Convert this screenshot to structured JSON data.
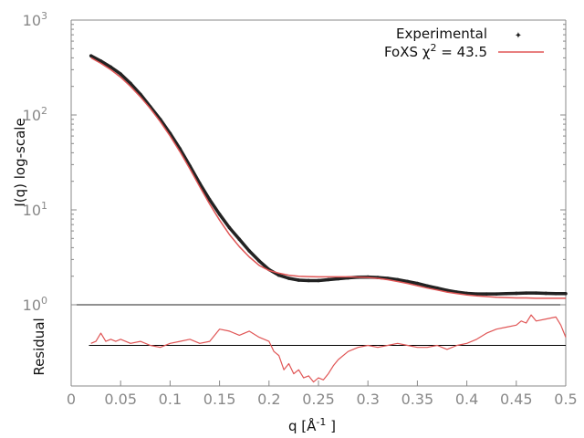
{
  "colors": {
    "experimental": "#222222",
    "fit": "#e05555",
    "residual": "#e05555",
    "axis": "#888888",
    "zero_line": "#000000"
  },
  "chart_data": [
    {
      "type": "scatter",
      "panel": "top",
      "xlabel": "",
      "ylabel": "I(q) log-scale",
      "yscale": "log",
      "xlim": [
        0,
        0.5
      ],
      "ylim": [
        1,
        1000
      ],
      "y_ticks": [
        {
          "base": "10",
          "exp": "0"
        },
        {
          "base": "10",
          "exp": "1"
        },
        {
          "base": "10",
          "exp": "2"
        },
        {
          "base": "10",
          "exp": "3"
        }
      ],
      "legend": {
        "position": "top-right",
        "experimental": "Experimental",
        "fit_prefix": "FoXS χ",
        "fit_sup": "2",
        "fit_suffix": " = 43.5"
      },
      "series": [
        {
          "name": "Experimental",
          "style": "points",
          "x": [
            0.02,
            0.03,
            0.04,
            0.05,
            0.06,
            0.07,
            0.08,
            0.09,
            0.1,
            0.11,
            0.12,
            0.13,
            0.14,
            0.15,
            0.16,
            0.17,
            0.18,
            0.19,
            0.2,
            0.21,
            0.22,
            0.23,
            0.24,
            0.25,
            0.26,
            0.27,
            0.28,
            0.29,
            0.3,
            0.31,
            0.32,
            0.33,
            0.34,
            0.35,
            0.36,
            0.37,
            0.38,
            0.39,
            0.4,
            0.41,
            0.42,
            0.43,
            0.44,
            0.45,
            0.46,
            0.47,
            0.48,
            0.49,
            0.5
          ],
          "y": [
            420,
            370,
            320,
            270,
            215,
            165,
            122,
            90,
            64,
            44,
            29,
            19,
            12.8,
            9.0,
            6.5,
            4.9,
            3.7,
            2.9,
            2.35,
            2.05,
            1.9,
            1.82,
            1.8,
            1.8,
            1.84,
            1.88,
            1.92,
            1.95,
            1.96,
            1.94,
            1.9,
            1.84,
            1.76,
            1.68,
            1.58,
            1.5,
            1.42,
            1.36,
            1.32,
            1.3,
            1.3,
            1.3,
            1.31,
            1.32,
            1.33,
            1.33,
            1.32,
            1.31,
            1.31
          ]
        },
        {
          "name": "FoXS χ2 = 43.5",
          "style": "line",
          "x": [
            0.02,
            0.03,
            0.04,
            0.05,
            0.06,
            0.07,
            0.08,
            0.09,
            0.1,
            0.11,
            0.12,
            0.13,
            0.14,
            0.15,
            0.16,
            0.17,
            0.18,
            0.19,
            0.2,
            0.21,
            0.22,
            0.23,
            0.24,
            0.25,
            0.26,
            0.27,
            0.28,
            0.29,
            0.3,
            0.31,
            0.32,
            0.33,
            0.34,
            0.35,
            0.36,
            0.37,
            0.38,
            0.39,
            0.4,
            0.41,
            0.42,
            0.43,
            0.44,
            0.45,
            0.46,
            0.47,
            0.48,
            0.49,
            0.5
          ],
          "y": [
            400,
            350,
            300,
            250,
            200,
            155,
            117,
            85,
            60,
            41,
            27,
            17.5,
            11.5,
            7.8,
            5.5,
            4.1,
            3.2,
            2.6,
            2.3,
            2.15,
            2.05,
            2.0,
            1.98,
            1.97,
            1.97,
            1.97,
            1.97,
            1.96,
            1.94,
            1.9,
            1.84,
            1.76,
            1.68,
            1.59,
            1.5,
            1.43,
            1.36,
            1.31,
            1.27,
            1.24,
            1.22,
            1.2,
            1.19,
            1.18,
            1.18,
            1.17,
            1.17,
            1.17,
            1.17
          ]
        }
      ]
    },
    {
      "type": "line",
      "panel": "bottom",
      "xlabel_prefix": "q [Å",
      "xlabel_sup": "-1",
      "xlabel_suffix": " ]",
      "ylabel": "Residual",
      "xlim": [
        0,
        0.5
      ],
      "ylim": [
        -2,
        2
      ],
      "x_ticks": [
        "0",
        "0.05",
        "0.1",
        "0.15",
        "0.2",
        "0.25",
        "0.3",
        "0.35",
        "0.4",
        "0.45",
        "0.5"
      ],
      "x_tick_values": [
        0,
        0.05,
        0.1,
        0.15,
        0.2,
        0.25,
        0.3,
        0.35,
        0.4,
        0.45,
        0.5
      ],
      "zero_line": 0,
      "series": [
        {
          "name": "Residual",
          "x": [
            0.02,
            0.025,
            0.03,
            0.035,
            0.04,
            0.045,
            0.05,
            0.06,
            0.07,
            0.08,
            0.09,
            0.1,
            0.11,
            0.12,
            0.13,
            0.14,
            0.15,
            0.16,
            0.17,
            0.18,
            0.19,
            0.2,
            0.205,
            0.21,
            0.215,
            0.22,
            0.225,
            0.23,
            0.235,
            0.24,
            0.245,
            0.25,
            0.255,
            0.26,
            0.265,
            0.27,
            0.28,
            0.29,
            0.3,
            0.31,
            0.32,
            0.33,
            0.34,
            0.35,
            0.36,
            0.37,
            0.38,
            0.39,
            0.4,
            0.41,
            0.42,
            0.43,
            0.44,
            0.45,
            0.455,
            0.46,
            0.465,
            0.47,
            0.48,
            0.49,
            0.495,
            0.5
          ],
          "y": [
            0.1,
            0.2,
            0.6,
            0.2,
            0.3,
            0.2,
            0.3,
            0.1,
            0.2,
            0.0,
            -0.1,
            0.1,
            0.2,
            0.3,
            0.1,
            0.2,
            0.8,
            0.7,
            0.5,
            0.7,
            0.4,
            0.2,
            -0.3,
            -0.5,
            -1.2,
            -0.9,
            -1.4,
            -1.2,
            -1.6,
            -1.5,
            -1.8,
            -1.6,
            -1.7,
            -1.4,
            -1.0,
            -0.7,
            -0.3,
            -0.1,
            0.0,
            -0.1,
            0.0,
            0.1,
            0.0,
            -0.1,
            -0.1,
            0.0,
            -0.2,
            0.0,
            0.1,
            0.3,
            0.6,
            0.8,
            0.9,
            1.0,
            1.2,
            1.1,
            1.5,
            1.2,
            1.3,
            1.4,
            1.0,
            0.4
          ]
        }
      ]
    }
  ]
}
